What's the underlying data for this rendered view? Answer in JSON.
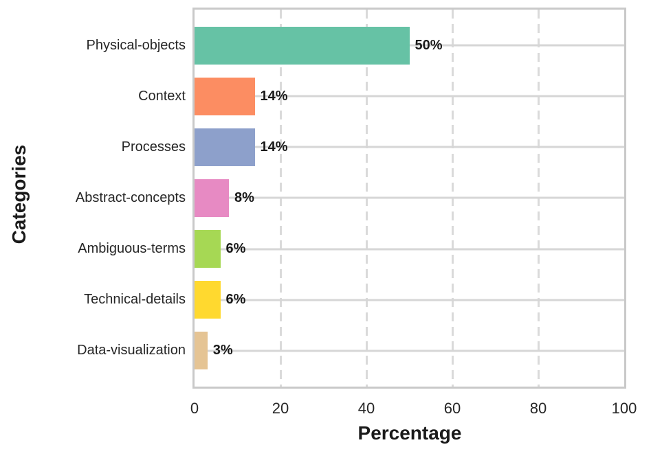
{
  "chart_data": {
    "type": "bar",
    "orientation": "horizontal",
    "title": "",
    "xlabel": "Percentage",
    "ylabel": "Categories",
    "categories": [
      "Physical-objects",
      "Context",
      "Processes",
      "Abstract-concepts",
      "Ambiguous-terms",
      "Technical-details",
      "Data-visualization"
    ],
    "values": [
      50,
      14,
      14,
      8,
      6,
      6,
      3
    ],
    "value_labels": [
      "50%",
      "14%",
      "14%",
      "8%",
      "6%",
      "6%",
      "3%"
    ],
    "bar_colors": [
      "#66c2a5",
      "#fc8d62",
      "#8da0cb",
      "#e78ac3",
      "#a6d854",
      "#ffd92f",
      "#e5c494"
    ],
    "xlim": [
      0,
      100
    ],
    "xticks": [
      0,
      20,
      40,
      60,
      80,
      100
    ],
    "grid": {
      "vertical": "dashed",
      "horizontal": "solid",
      "color": "#d6d6d6"
    },
    "legend": "none",
    "colors": {
      "plot_background": "#ffffff",
      "figure_background": "#ffffff",
      "spine": "#c9c9c9",
      "tick_text": "#262626",
      "label_text": "#1a1a1a"
    }
  }
}
